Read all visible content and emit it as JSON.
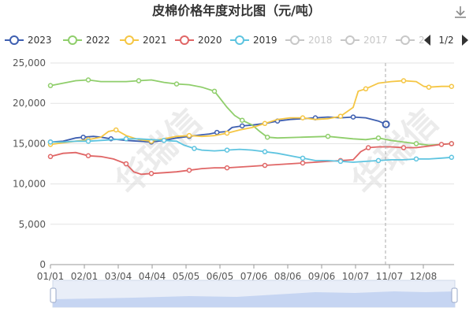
{
  "chart_data": {
    "type": "line",
    "title": "皮棉价格年度对比图（元/吨）",
    "x_ticks": [
      "01/01",
      "02/01",
      "03/04",
      "04/04",
      "05/05",
      "06/05",
      "07/06",
      "08/06",
      "09/06",
      "10/07",
      "11/07",
      "12/08"
    ],
    "y_ticks": [
      "0",
      "5,000",
      "10,000",
      "15,000",
      "20,000",
      "25,000"
    ],
    "ylim": [
      0,
      25000
    ],
    "legend_placement": "top",
    "pager": {
      "text": "1/2",
      "prev_icon": "triangle-left-icon",
      "next_icon": "triangle-right-icon"
    },
    "download_icon": "download-icon",
    "watermark": {
      "text": "华瑞信"
    },
    "series": [
      {
        "name": "2023",
        "color": "#3e5fb0",
        "active": true,
        "points": [
          [
            0,
            15200
          ],
          [
            0.5,
            15300
          ],
          [
            1,
            15700
          ],
          [
            1.3,
            15800
          ],
          [
            1.7,
            15900
          ],
          [
            2,
            15800
          ],
          [
            2.4,
            15600
          ],
          [
            3,
            15400
          ],
          [
            3.5,
            15300
          ],
          [
            4,
            15200
          ],
          [
            4.5,
            15400
          ],
          [
            5,
            15700
          ],
          [
            5.5,
            15900
          ],
          [
            6,
            16100
          ],
          [
            6.3,
            16200
          ],
          [
            6.6,
            16400
          ],
          [
            7,
            16500
          ],
          [
            7.2,
            17000
          ],
          [
            7.6,
            17200
          ],
          [
            8,
            17300
          ],
          [
            8.5,
            17500
          ],
          [
            9,
            17800
          ],
          [
            9.5,
            18000
          ],
          [
            10,
            18100
          ],
          [
            10.5,
            18200
          ],
          [
            11,
            18300
          ],
          [
            11.5,
            18200
          ],
          [
            12,
            18300
          ],
          [
            12.5,
            18200
          ],
          [
            13,
            17800
          ],
          [
            13.3,
            17400
          ]
        ]
      },
      {
        "name": "2022",
        "color": "#8fce6b",
        "active": true,
        "points": [
          [
            0,
            22200
          ],
          [
            0.5,
            22500
          ],
          [
            1,
            22800
          ],
          [
            1.5,
            22900
          ],
          [
            2,
            22700
          ],
          [
            3,
            22700
          ],
          [
            3.5,
            22800
          ],
          [
            4,
            22900
          ],
          [
            4.5,
            22600
          ],
          [
            5,
            22400
          ],
          [
            5.5,
            22300
          ],
          [
            6,
            22000
          ],
          [
            6.5,
            21500
          ],
          [
            7,
            19500
          ],
          [
            7.3,
            18500
          ],
          [
            7.6,
            17900
          ],
          [
            8,
            17300
          ],
          [
            8.3,
            16500
          ],
          [
            8.6,
            15800
          ],
          [
            9,
            15700
          ],
          [
            10,
            15800
          ],
          [
            11,
            15900
          ],
          [
            12,
            15600
          ],
          [
            12.5,
            15500
          ],
          [
            13,
            15700
          ],
          [
            13.5,
            15400
          ],
          [
            14,
            15200
          ],
          [
            14.5,
            15000
          ],
          [
            15,
            14800
          ],
          [
            15.5,
            14900
          ],
          [
            15.9,
            15000
          ]
        ]
      },
      {
        "name": "2021",
        "color": "#f5c644",
        "active": true,
        "points": [
          [
            0,
            14900
          ],
          [
            0.5,
            15100
          ],
          [
            1,
            15300
          ],
          [
            1.5,
            15500
          ],
          [
            2,
            15800
          ],
          [
            2.3,
            16500
          ],
          [
            2.6,
            16700
          ],
          [
            3,
            16000
          ],
          [
            3.5,
            15500
          ],
          [
            4,
            15300
          ],
          [
            4.5,
            15600
          ],
          [
            5,
            15900
          ],
          [
            5.5,
            16000
          ],
          [
            6,
            15900
          ],
          [
            6.5,
            16000
          ],
          [
            7,
            16300
          ],
          [
            7.5,
            16700
          ],
          [
            8,
            17000
          ],
          [
            8.5,
            17500
          ],
          [
            9,
            18000
          ],
          [
            9.5,
            18200
          ],
          [
            10,
            18200
          ],
          [
            10.5,
            18000
          ],
          [
            11,
            18100
          ],
          [
            11.5,
            18400
          ],
          [
            12,
            19500
          ],
          [
            12.2,
            21500
          ],
          [
            12.5,
            21800
          ],
          [
            13,
            22500
          ],
          [
            13.5,
            22700
          ],
          [
            14,
            22800
          ],
          [
            14.5,
            22700
          ],
          [
            14.8,
            22100
          ],
          [
            15,
            22000
          ],
          [
            15.5,
            22100
          ],
          [
            15.9,
            22100
          ]
        ]
      },
      {
        "name": "2020",
        "color": "#e06666",
        "active": true,
        "points": [
          [
            0,
            13400
          ],
          [
            0.5,
            13800
          ],
          [
            1,
            13900
          ],
          [
            1.5,
            13500
          ],
          [
            2,
            13400
          ],
          [
            2.5,
            13100
          ],
          [
            3,
            12500
          ],
          [
            3.3,
            11500
          ],
          [
            3.6,
            11200
          ],
          [
            4,
            11300
          ],
          [
            4.5,
            11400
          ],
          [
            5,
            11500
          ],
          [
            5.5,
            11700
          ],
          [
            6,
            11900
          ],
          [
            6.5,
            12000
          ],
          [
            7,
            12000
          ],
          [
            7.5,
            12100
          ],
          [
            8,
            12200
          ],
          [
            8.5,
            12300
          ],
          [
            9,
            12400
          ],
          [
            9.5,
            12500
          ],
          [
            10,
            12600
          ],
          [
            10.5,
            12700
          ],
          [
            11,
            12800
          ],
          [
            11.5,
            12900
          ],
          [
            12,
            13000
          ],
          [
            12.3,
            14000
          ],
          [
            12.6,
            14500
          ],
          [
            13,
            14600
          ],
          [
            13.5,
            14600
          ],
          [
            14,
            14500
          ],
          [
            14.5,
            14500
          ],
          [
            15,
            14700
          ],
          [
            15.5,
            14900
          ],
          [
            15.9,
            15000
          ]
        ]
      },
      {
        "name": "2019",
        "color": "#5ec4e0",
        "active": true,
        "points": [
          [
            0,
            15200
          ],
          [
            0.5,
            15200
          ],
          [
            1,
            15300
          ],
          [
            1.5,
            15300
          ],
          [
            2,
            15400
          ],
          [
            2.5,
            15500
          ],
          [
            3,
            15600
          ],
          [
            3.5,
            15600
          ],
          [
            4,
            15500
          ],
          [
            4.5,
            15400
          ],
          [
            5,
            15300
          ],
          [
            5.3,
            14800
          ],
          [
            5.7,
            14400
          ],
          [
            6,
            14200
          ],
          [
            6.5,
            14100
          ],
          [
            7,
            14200
          ],
          [
            7.5,
            14300
          ],
          [
            8,
            14200
          ],
          [
            8.5,
            14000
          ],
          [
            9,
            13800
          ],
          [
            9.5,
            13500
          ],
          [
            10,
            13200
          ],
          [
            10.5,
            12900
          ],
          [
            11,
            12900
          ],
          [
            11.5,
            12800
          ],
          [
            12,
            12700
          ],
          [
            12.5,
            12800
          ],
          [
            13,
            12900
          ],
          [
            13.5,
            13000
          ],
          [
            14,
            13000
          ],
          [
            14.5,
            13100
          ],
          [
            15,
            13100
          ],
          [
            15.5,
            13200
          ],
          [
            15.9,
            13300
          ]
        ]
      },
      {
        "name": "2018",
        "color": "#c7c7c7",
        "active": false,
        "points": []
      },
      {
        "name": "2017",
        "color": "#c7c7c7",
        "active": false,
        "points": []
      },
      {
        "name": "2",
        "color": "#c7c7c7",
        "active": false,
        "points": []
      }
    ]
  }
}
